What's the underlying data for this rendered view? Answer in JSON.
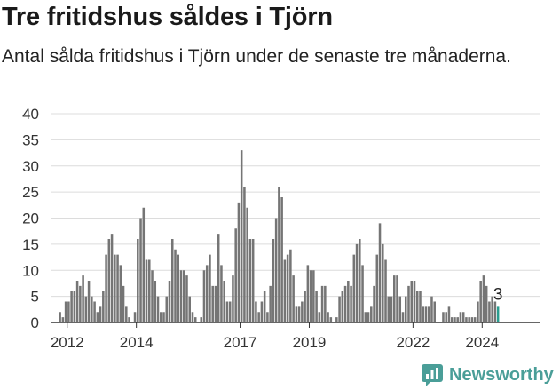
{
  "header": {
    "title": "Tre fritidshus såldes i Tjörn",
    "subtitle": "Antal sålda fritidshus i Tjörn under de senaste tre månaderna."
  },
  "brand": {
    "name": "Newsworthy",
    "icon": "newsworthy-logo-icon",
    "color": "#4a9e98"
  },
  "colors": {
    "bar": "#757575",
    "highlight": "#2a9d8f",
    "grid": "#dcdcdc",
    "axis": "#333333"
  },
  "chart_data": {
    "type": "bar",
    "x_start": "2011-10",
    "x_end": "2025-03",
    "ylim": [
      0,
      40
    ],
    "yticks": [
      0,
      5,
      10,
      15,
      20,
      25,
      30,
      35,
      40
    ],
    "xticks": [
      {
        "label": "2012",
        "month": "2012-01"
      },
      {
        "label": "2014",
        "month": "2014-01"
      },
      {
        "label": "2017",
        "month": "2017-01"
      },
      {
        "label": "2019",
        "month": "2019-01"
      },
      {
        "label": "2022",
        "month": "2022-01"
      },
      {
        "label": "2024",
        "month": "2024-01"
      }
    ],
    "values": [
      2,
      1,
      4,
      4,
      6,
      6,
      8,
      7,
      9,
      5,
      8,
      5,
      4,
      2,
      3,
      6,
      13,
      16,
      17,
      13,
      13,
      11,
      7,
      3,
      1,
      0,
      2,
      16,
      20,
      22,
      12,
      12,
      10,
      8,
      5,
      2,
      2,
      5,
      8,
      16,
      14,
      13,
      10,
      10,
      9,
      5,
      2,
      1,
      0,
      1,
      10,
      11,
      13,
      7,
      7,
      17,
      11,
      8,
      4,
      4,
      9,
      18,
      23,
      33,
      26,
      22,
      16,
      16,
      4,
      2,
      4,
      6,
      2,
      7,
      16,
      20,
      26,
      24,
      12,
      13,
      14,
      9,
      3,
      3,
      4,
      6,
      11,
      10,
      10,
      6,
      2,
      7,
      7,
      2,
      1,
      0,
      1,
      5,
      6,
      7,
      8,
      7,
      13,
      15,
      16,
      11,
      2,
      2,
      3,
      7,
      13,
      19,
      15,
      12,
      5,
      5,
      9,
      9,
      5,
      2,
      5,
      7,
      8,
      8,
      6,
      6,
      3,
      3,
      3,
      5,
      4,
      0,
      0,
      2,
      2,
      3,
      1,
      1,
      1,
      2,
      2,
      1,
      1,
      1,
      1,
      4,
      8,
      9,
      7,
      4,
      5,
      4,
      3
    ],
    "highlight_last": true,
    "annotation": {
      "label": "3"
    }
  }
}
